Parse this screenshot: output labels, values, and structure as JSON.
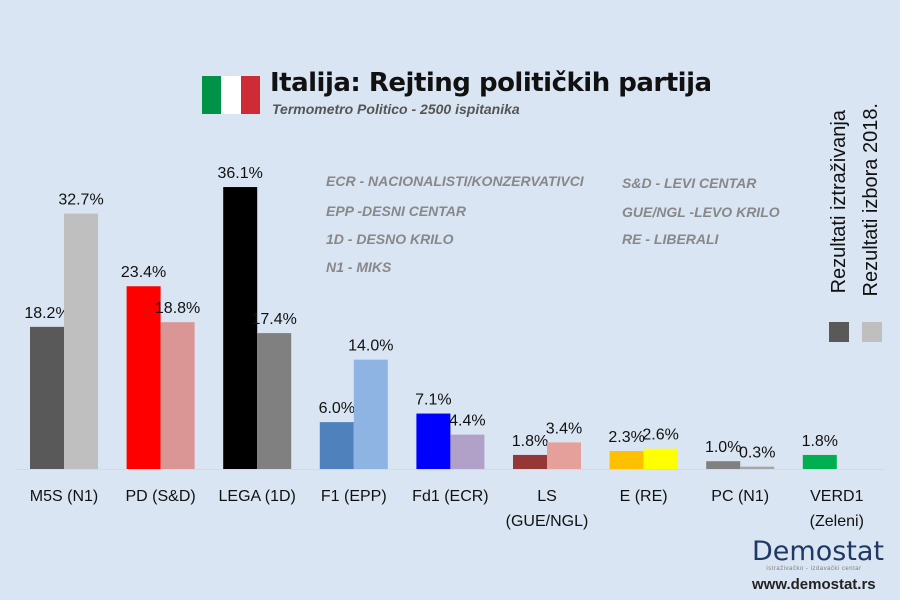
{
  "chart_data": {
    "type": "bar",
    "title": "Italija: Rejting političkih partija",
    "subtitle": "Termometro Politico - 2500 ispitanika",
    "categories": [
      "M5S (N1)",
      "PD (S&D)",
      "LEGA (1D)",
      "F1 (EPP)",
      "Fd1 (ECR)",
      "LS (GUE/NGL)",
      "E (RE)",
      "PC (N1)",
      "VERD1 (Zeleni)"
    ],
    "category_lines": [
      [
        "M5S (N1)"
      ],
      [
        "PD (S&D)"
      ],
      [
        "LEGA (1D)"
      ],
      [
        "F1 (EPP)"
      ],
      [
        "Fd1 (ECR)"
      ],
      [
        "LS",
        "(GUE/NGL)"
      ],
      [
        "E (RE)"
      ],
      [
        "PC (N1)"
      ],
      [
        "VERD1",
        "(Zeleni)"
      ]
    ],
    "series": [
      {
        "name": "Rezultati iztraživanja",
        "values": [
          18.2,
          23.4,
          36.1,
          6.0,
          7.1,
          1.8,
          2.3,
          1.0,
          1.8
        ],
        "colors": [
          "#595959",
          "#ff0000",
          "#000000",
          "#4f81bd",
          "#0000ff",
          "#953735",
          "#ffc000",
          "#808080",
          "#00b050"
        ]
      },
      {
        "name": "Rezultati izbora 2018.",
        "values": [
          32.7,
          18.8,
          17.4,
          14.0,
          4.4,
          3.4,
          2.6,
          0.3,
          null
        ],
        "colors": [
          "#bfbfbf",
          "#da9694",
          "#808080",
          "#8db4e2",
          "#b1a0c7",
          "#e6a09b",
          "#ffff00",
          "#a6a6a6",
          null
        ]
      }
    ],
    "legend_colors": [
      "#595959",
      "#bfbfbf"
    ],
    "ylim": [
      0,
      38
    ],
    "grid": false,
    "legend_placement": "right"
  },
  "notes_left": [
    "ECR - NACIONALISTI/KONZERVATIVCI",
    "EPP -DESNI CENTAR",
    "1D - DESNO KRILO",
    "N1 - MIKS"
  ],
  "notes_right": [
    "S&D - LEVI CENTAR",
    "GUE/NGL -LEVO KRILO",
    "RE - LIBERALI"
  ],
  "logo": {
    "name": "Demostat",
    "tagline": "istraživačko - izdavački centar",
    "url": "www.demostat.rs"
  }
}
